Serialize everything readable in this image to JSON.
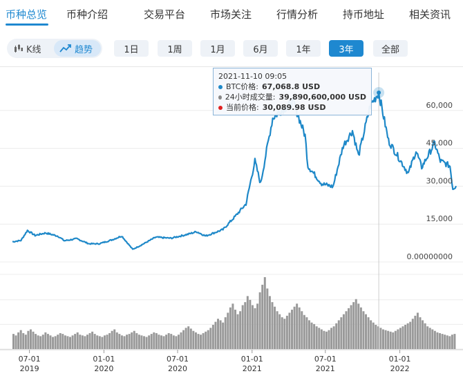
{
  "nav": {
    "items": [
      "币种总览",
      "币种介绍",
      "交易平台",
      "市场关注",
      "行情分析",
      "持币地址",
      "相关资讯"
    ],
    "active_index": 0
  },
  "toolbar": {
    "view_modes": [
      {
        "label": "K线",
        "icon": "candlestick-icon",
        "active": false
      },
      {
        "label": "趋势",
        "icon": "trend-line-icon",
        "active": true
      }
    ],
    "ranges": [
      "1日",
      "1周",
      "1月",
      "6月",
      "1年",
      "3年",
      "全部"
    ],
    "active_range_index": 5
  },
  "tooltip": {
    "time": "2021-11-10 09:05",
    "rows": [
      {
        "label": "BTC价格:",
        "value": "67,068.8 USD",
        "color": "#1e88c8"
      },
      {
        "label": "24小时成交量:",
        "value": "39,890,600,000 USD",
        "color": "#888888"
      },
      {
        "label": "当前价格:",
        "value": "30,089.98 USD",
        "color": "#e02020"
      }
    ]
  },
  "colors": {
    "accent": "#1e88d0",
    "price_line": "#1e88c8",
    "volume_bar": "#999999"
  },
  "chart_data": {
    "type": "line",
    "title": "",
    "xlabel": "",
    "ylabel": "",
    "ylim": [
      0,
      75000
    ],
    "y_ticks": [
      "0.00000000",
      "15,000",
      "30,000",
      "45,000",
      "60,000"
    ],
    "y_tick_values": [
      0,
      15000,
      30000,
      45000,
      60000
    ],
    "x_ticks": [
      {
        "date": "2019-07-01",
        "label": "07-01",
        "year": "2019"
      },
      {
        "date": "2020-01-01",
        "label": "01-01",
        "year": "2020"
      },
      {
        "date": "2020-07-01",
        "label": "07-01",
        "year": "2020"
      },
      {
        "date": "2021-01-01",
        "label": "01-01",
        "year": "2021"
      },
      {
        "date": "2021-07-01",
        "label": "07-01",
        "year": "2021"
      },
      {
        "date": "2022-01-01",
        "label": "01-01",
        "year": "2022"
      }
    ],
    "x_range": [
      "2019-05-20",
      "2022-05-20"
    ],
    "highlight": {
      "date": "2021-11-10",
      "price": 67068.8
    },
    "series": [
      {
        "name": "BTC价格",
        "x": [
          "2019-05-20",
          "2019-06-10",
          "2019-06-26",
          "2019-07-15",
          "2019-08-10",
          "2019-09-10",
          "2019-09-25",
          "2019-10-26",
          "2019-11-25",
          "2019-12-20",
          "2020-01-20",
          "2020-02-14",
          "2020-03-12",
          "2020-03-31",
          "2020-05-08",
          "2020-06-15",
          "2020-07-27",
          "2020-08-17",
          "2020-09-08",
          "2020-10-21",
          "2020-11-20",
          "2020-12-17",
          "2021-01-08",
          "2021-01-22",
          "2021-02-08",
          "2021-02-21",
          "2021-03-13",
          "2021-04-14",
          "2021-05-12",
          "2021-05-19",
          "2021-06-22",
          "2021-07-20",
          "2021-08-14",
          "2021-09-06",
          "2021-09-21",
          "2021-10-20",
          "2021-11-10",
          "2021-12-04",
          "2022-01-22",
          "2022-02-10",
          "2022-02-24",
          "2022-03-28",
          "2022-04-11",
          "2022-05-05",
          "2022-05-12",
          "2022-05-20"
        ],
        "values": [
          8000,
          8500,
          12500,
          10500,
          11500,
          10200,
          8400,
          9200,
          7200,
          7200,
          8700,
          10300,
          5000,
          6500,
          9800,
          9400,
          11000,
          12000,
          10300,
          12800,
          18000,
          23000,
          40000,
          31000,
          46000,
          57000,
          60000,
          63000,
          50000,
          38000,
          31000,
          29800,
          46000,
          52000,
          42000,
          62000,
          67068.8,
          48000,
          35000,
          44000,
          37500,
          47000,
          40000,
          38000,
          29000,
          30089.98
        ]
      }
    ],
    "volume_ylim": [
      0,
      60000000000
    ],
    "volume_bars": [
      20,
      18,
      22,
      25,
      21,
      19,
      24,
      26,
      23,
      20,
      18,
      17,
      19,
      22,
      20,
      18,
      16,
      17,
      19,
      21,
      20,
      18,
      17,
      16,
      18,
      20,
      22,
      19,
      18,
      17,
      19,
      21,
      23,
      20,
      18,
      17,
      16,
      18,
      19,
      21,
      24,
      26,
      22,
      20,
      18,
      17,
      19,
      20,
      22,
      24,
      21,
      19,
      18,
      17,
      16,
      18,
      20,
      22,
      21,
      19,
      18,
      17,
      19,
      21,
      20,
      18,
      17,
      19,
      22,
      25,
      28,
      30,
      27,
      24,
      22,
      20,
      19,
      21,
      23,
      25,
      28,
      32,
      36,
      40,
      38,
      35,
      42,
      48,
      55,
      60,
      52,
      46,
      50,
      58,
      62,
      70,
      65,
      58,
      54,
      60,
      75,
      85,
      95,
      80,
      70,
      62,
      56,
      50,
      46,
      42,
      40,
      44,
      48,
      52,
      56,
      60,
      55,
      50,
      45,
      42,
      38,
      35,
      33,
      30,
      28,
      26,
      24,
      23,
      25,
      28,
      30,
      34,
      38,
      42,
      46,
      50,
      54,
      58,
      62,
      66,
      60,
      55,
      50,
      46,
      42,
      38,
      35,
      32,
      30,
      28,
      26,
      25,
      24,
      23,
      22,
      24,
      26,
      28,
      30,
      32,
      34,
      36,
      40,
      44,
      48,
      42,
      38,
      34,
      30,
      28,
      26,
      24,
      22,
      21,
      20,
      19,
      18,
      17,
      19,
      20
    ]
  }
}
